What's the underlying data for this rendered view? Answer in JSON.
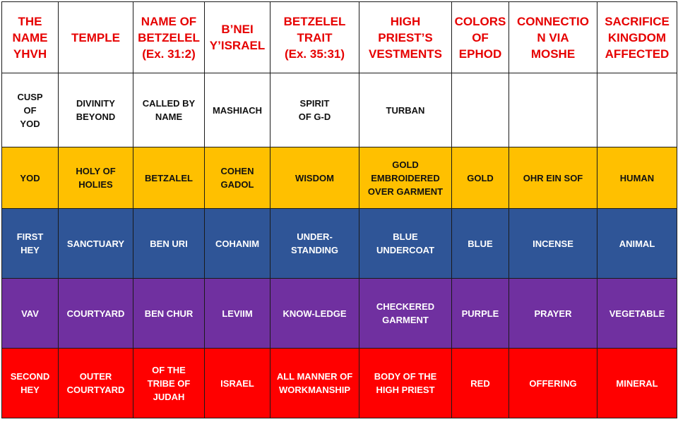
{
  "headers": [
    "THE\nNAME\nYHVH",
    "TEMPLE",
    "NAME OF\nBETZELEL\n(Ex. 31:2)",
    "B’NEI\nY’ISRAEL",
    "BETZELEL\nTRAIT\n(Ex. 35:31)",
    "HIGH\nPRIEST’S\nVESTMENTS",
    "COLORS\nOF\nEPHOD",
    "CONNECTIO\nN VIA\nMOSHE",
    "SACRIFICE\nKINGDOM\nAFFECTED"
  ],
  "rows": [
    {
      "bg": "#ffffff",
      "fg": "#111111",
      "cells": [
        "CUSP\nOF\nYOD",
        "DIVINITY\nBEYOND",
        "CALLED BY\nNAME",
        "MASHIACH",
        "SPIRIT\nOF G-D",
        "TURBAN",
        "",
        "",
        ""
      ]
    },
    {
      "bg": "#ffc000",
      "fg": "#111111",
      "cells": [
        "YOD",
        "HOLY OF\nHOLIES",
        "BETZALEL",
        "COHEN\nGADOL",
        "WISDOM",
        "GOLD\nEMBROIDERED\nOVER GARMENT",
        "GOLD",
        "OHR EIN SOF",
        "HUMAN"
      ]
    },
    {
      "bg": "#2f5597",
      "fg": "#ffffff",
      "cells": [
        "FIRST\nHEY",
        "SANCTUARY",
        "BEN URI",
        "COHANIM",
        "UNDER-\nSTANDING",
        "BLUE\nUNDERCOAT",
        "BLUE",
        "INCENSE",
        "ANIMAL"
      ]
    },
    {
      "bg": "#7030a0",
      "fg": "#ffffff",
      "cells": [
        "VAV",
        "COURTYARD",
        "BEN CHUR",
        "LEVIIM",
        "KNOW-LEDGE",
        "CHECKERED\nGARMENT",
        "PURPLE",
        "PRAYER",
        "VEGETABLE"
      ]
    },
    {
      "bg": "#ff0000",
      "fg": "#ffffff",
      "cells": [
        "SECOND\nHEY",
        "OUTER\nCOURTYARD",
        "OF THE\nTRIBE OF\nJUDAH",
        "ISRAEL",
        "ALL MANNER OF\nWORKMANSHIP",
        "BODY OF THE\nHIGH PRIEST",
        "RED",
        "OFFERING",
        "MINERAL"
      ]
    }
  ],
  "colors": {
    "header_text": "#e60000",
    "gold": "#ffc000",
    "blue": "#2f5597",
    "purple": "#7030a0",
    "red": "#ff0000"
  }
}
